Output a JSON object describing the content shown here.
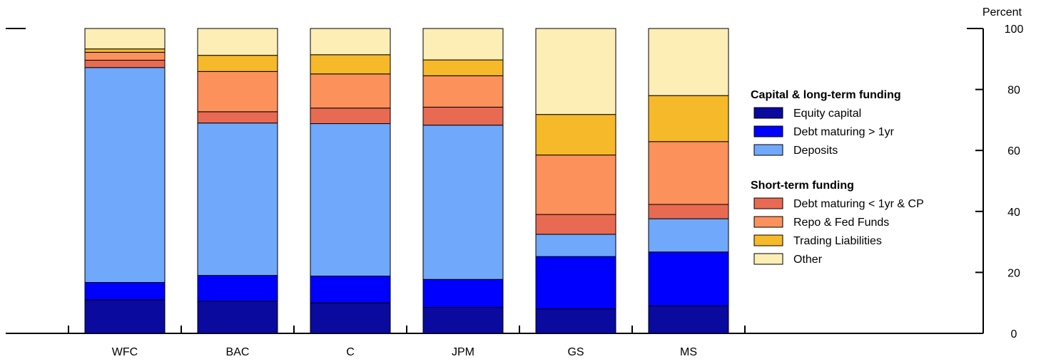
{
  "chart_data": {
    "type": "bar",
    "stacked": true,
    "ylabel": "Percent",
    "ylim": [
      0,
      100
    ],
    "yticks": [
      0,
      20,
      40,
      60,
      80,
      100
    ],
    "categories": [
      "WFC",
      "BAC",
      "C",
      "JPM",
      "GS",
      "MS"
    ],
    "legend_placement": "right",
    "legend_groups": [
      {
        "title": "Capital & long-term funding",
        "series": [
          0,
          1,
          2
        ]
      },
      {
        "title": "Short-term funding",
        "series": [
          3,
          4,
          5,
          6
        ]
      }
    ],
    "series": [
      {
        "name": "Equity capital",
        "color": "#0a0a9e",
        "values": [
          11,
          10.5,
          10,
          8.5,
          8,
          9
        ]
      },
      {
        "name": "Debt maturing > 1yr",
        "color": "#0000ff",
        "values": [
          5.7,
          8.5,
          8.8,
          9.2,
          17.2,
          17.7
        ]
      },
      {
        "name": "Deposits",
        "color": "#70a8fc",
        "values": [
          70.5,
          50,
          50,
          50.6,
          7.3,
          10.9
        ]
      },
      {
        "name": "Debt maturing < 1yr & CP",
        "color": "#e96a52",
        "values": [
          2.4,
          3.7,
          5.1,
          5.9,
          6.5,
          4.7
        ]
      },
      {
        "name": "Repo & Fed Funds",
        "color": "#fd915c",
        "values": [
          2.6,
          13.2,
          11.2,
          10.3,
          19.5,
          20.6
        ]
      },
      {
        "name": "Trading Liabilities",
        "color": "#f6b92a",
        "values": [
          1.1,
          5.3,
          6.3,
          5.2,
          13.3,
          15.1
        ]
      },
      {
        "name": "Other",
        "color": "#fdeeb6",
        "values": [
          6.7,
          8.8,
          8.6,
          10.3,
          28.2,
          22
        ]
      }
    ]
  }
}
